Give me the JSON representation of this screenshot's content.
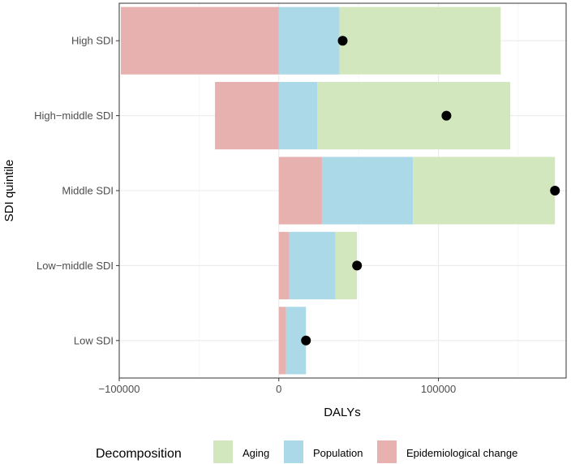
{
  "chart_data": {
    "type": "bar",
    "orientation": "horizontal",
    "stacked": "diverging",
    "categories": [
      "High SDI",
      "High−middle SDI",
      "Middle SDI",
      "Low−middle SDI",
      "Low SDI"
    ],
    "series": [
      {
        "name": "Epidemiological change",
        "color": "#e6b1ae",
        "values": [
          -99000,
          -40000,
          27000,
          6500,
          4500
        ]
      },
      {
        "name": "Population",
        "color": "#acd9e8",
        "values": [
          38000,
          24000,
          57000,
          29000,
          12500
        ]
      },
      {
        "name": "Aging",
        "color": "#d3e7bf",
        "values": [
          101000,
          121000,
          89000,
          13500,
          0
        ]
      }
    ],
    "total_points": {
      "name": "Total",
      "color": "#000000",
      "values": [
        40000,
        105000,
        173000,
        49000,
        17000
      ]
    },
    "xlabel": "DALYs",
    "ylabel": "SDI quintile",
    "xlim": [
      -100000,
      180000
    ],
    "x_ticks": [
      -100000,
      0,
      100000
    ],
    "x_tick_labels": [
      "−100000",
      "0",
      "100000"
    ],
    "grid": true,
    "legend": {
      "title": "Decomposition",
      "position": "bottom",
      "entries": [
        {
          "label": "Aging",
          "color": "#d3e7bf"
        },
        {
          "label": "Population",
          "color": "#acd9e8"
        },
        {
          "label": "Epidemiological change",
          "color": "#e6b1ae"
        }
      ]
    }
  }
}
